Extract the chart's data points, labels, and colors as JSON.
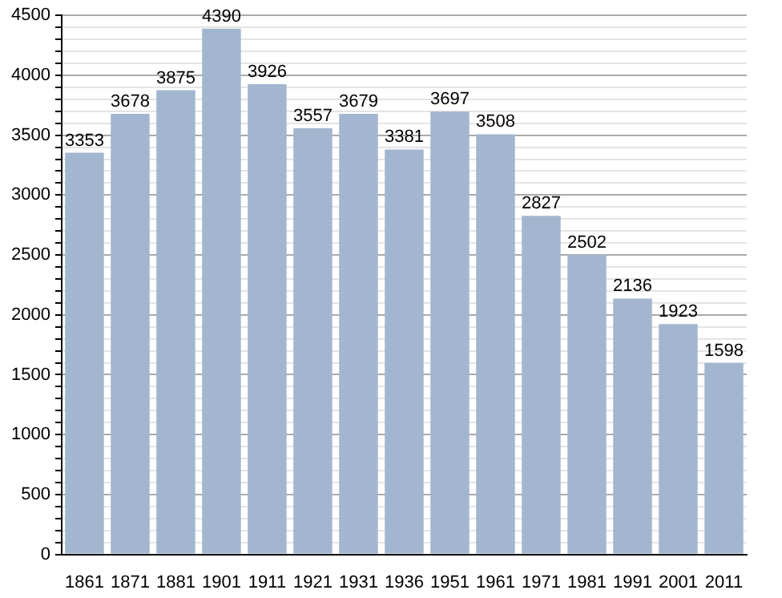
{
  "chart_data": {
    "type": "bar",
    "categories": [
      "1861",
      "1871",
      "1881",
      "1901",
      "1911",
      "1921",
      "1931",
      "1936",
      "1951",
      "1961",
      "1971",
      "1981",
      "1991",
      "2001",
      "2011"
    ],
    "values": [
      3353,
      3678,
      3875,
      4390,
      3926,
      3557,
      3679,
      3381,
      3697,
      3508,
      2827,
      2502,
      2136,
      1923,
      1598
    ],
    "color": "#a3b6d0",
    "ylim": [
      0,
      4500
    ],
    "yticks": [
      0,
      {
        "value": 100,
        "label": null
      },
      {
        "value": 200,
        "label": null
      },
      {
        "value": 300,
        "label": null
      },
      {
        "value": 400,
        "label": null
      },
      500,
      {
        "value": 600,
        "label": null
      },
      {
        "value": 700,
        "label": null
      },
      {
        "value": 800,
        "label": null
      },
      {
        "value": 900,
        "label": null
      },
      1000,
      {
        "value": 1100,
        "label": null
      },
      {
        "value": 1200,
        "label": null
      },
      {
        "value": 1300,
        "label": null
      },
      {
        "value": 1400,
        "label": null
      },
      1500,
      {
        "value": 1600,
        "label": null
      },
      {
        "value": 1700,
        "label": null
      },
      {
        "value": 1800,
        "label": null
      },
      {
        "value": 1900,
        "label": null
      },
      2000,
      {
        "value": 2100,
        "label": null
      },
      {
        "value": 2200,
        "label": null
      },
      {
        "value": 2300,
        "label": null
      },
      {
        "value": 2400,
        "label": null
      },
      2500,
      {
        "value": 2600,
        "label": null
      },
      {
        "value": 2700,
        "label": null
      },
      {
        "value": 2800,
        "label": null
      },
      {
        "value": 2900,
        "label": null
      },
      3000,
      {
        "value": 3100,
        "label": null
      },
      {
        "value": 3200,
        "label": null
      },
      {
        "value": 3300,
        "label": null
      },
      {
        "value": 3400,
        "label": null
      },
      3500,
      {
        "value": 3600,
        "label": null
      },
      {
        "value": 3700,
        "label": null
      },
      {
        "value": 3800,
        "label": null
      },
      {
        "value": 3900,
        "label": null
      },
      4000,
      {
        "value": 4100,
        "label": null
      },
      {
        "value": 4200,
        "label": null
      },
      {
        "value": 4300,
        "label": null
      },
      {
        "value": 4400,
        "label": null
      },
      4500
    ],
    "grid": "y",
    "data_labels": true,
    "legend": false
  }
}
